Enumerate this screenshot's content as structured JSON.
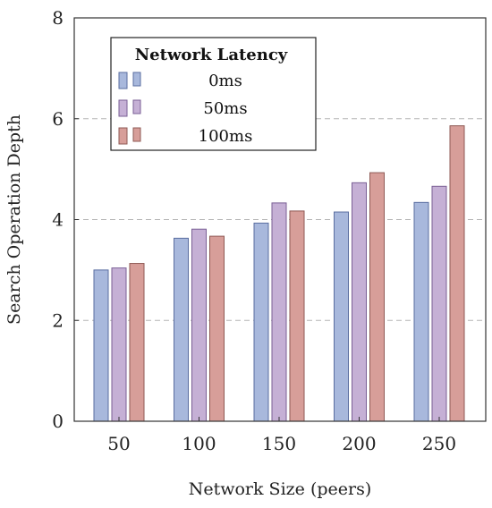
{
  "chart_data": {
    "type": "bar",
    "categories": [
      "50",
      "100",
      "150",
      "200",
      "250"
    ],
    "series": [
      {
        "name": "0ms",
        "values": [
          3.0,
          3.63,
          3.93,
          4.15,
          4.34
        ],
        "color": "#a8b8dc",
        "stroke": "#5a6ea0"
      },
      {
        "name": "50ms",
        "values": [
          3.04,
          3.81,
          4.33,
          4.73,
          4.66
        ],
        "color": "#c5b0d5",
        "stroke": "#7a5f95"
      },
      {
        "name": "100ms",
        "values": [
          3.13,
          3.67,
          4.17,
          4.93,
          5.86
        ],
        "color": "#d79e99",
        "stroke": "#8f5a55"
      }
    ],
    "legend_title": "Network Latency",
    "legend_position": "top-left",
    "xlabel": "Network Size (peers)",
    "ylabel": "Search Operation Depth",
    "ylim": [
      0,
      8
    ],
    "yticks": [
      0,
      2,
      4,
      6,
      8
    ],
    "grid": "horizontal dashed"
  }
}
